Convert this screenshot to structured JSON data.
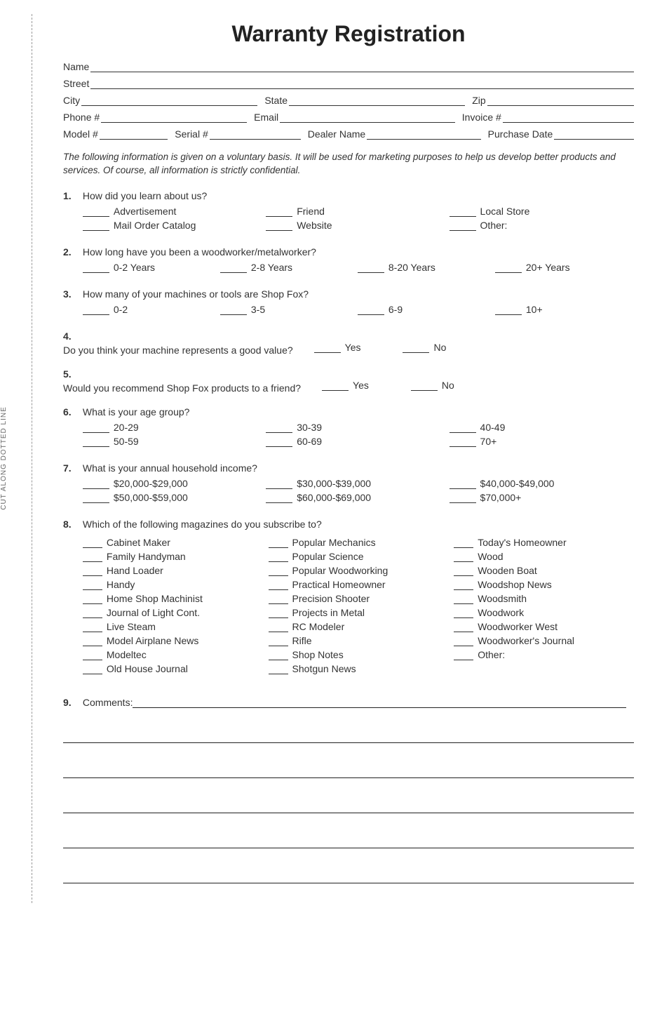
{
  "sidebar_label": "CUT ALONG DOTTED LINE",
  "title": "Warranty Registration",
  "header_fields": {
    "name": "Name",
    "street": "Street",
    "city": "City",
    "state": "State",
    "zip": "Zip",
    "phone": "Phone #",
    "email": "Email",
    "invoice": "Invoice #",
    "model": "Model #",
    "serial": "Serial #",
    "dealer": "Dealer Name",
    "purchase_date": "Purchase Date"
  },
  "intro": "The following information is given on a voluntary basis. It will be used for marketing purposes to help us develop better products and services. Of course, all information is strictly confidential.",
  "q1": {
    "text": "How did you learn about us?",
    "opts": [
      "Advertisement",
      "Friend",
      "Local Store",
      "Mail Order Catalog",
      "Website",
      "Other:"
    ]
  },
  "q2": {
    "text": "How long have you been a woodworker/metalworker?",
    "opts": [
      "0-2 Years",
      "2-8 Years",
      "8-20 Years",
      "20+ Years"
    ]
  },
  "q3": {
    "text": "How many of your machines or tools are Shop Fox?",
    "opts": [
      "0-2",
      "3-5",
      "6-9",
      "10+"
    ]
  },
  "q4": {
    "text": "Do you think your machine represents a good value?",
    "yes": "Yes",
    "no": "No"
  },
  "q5": {
    "text": "Would you recommend Shop Fox products to a friend?",
    "yes": "Yes",
    "no": "No"
  },
  "q6": {
    "text": "What is your age group?",
    "opts": [
      "20-29",
      "30-39",
      "40-49",
      "50-59",
      "60-69",
      "70+"
    ]
  },
  "q7": {
    "text": "What is your annual household income?",
    "opts": [
      "$20,000-$29,000",
      "$30,000-$39,000",
      "$40,000-$49,000",
      "$50,000-$59,000",
      "$60,000-$69,000",
      "$70,000+"
    ]
  },
  "q8": {
    "text": "Which of the following magazines do you subscribe to?",
    "col1": [
      "Cabinet Maker",
      "Family Handyman",
      "Hand Loader",
      "Handy",
      "Home Shop Machinist",
      "Journal of Light Cont.",
      "Live Steam",
      "Model Airplane News",
      "Modeltec",
      "Old House Journal"
    ],
    "col2": [
      "Popular Mechanics",
      "Popular Science",
      "Popular Woodworking",
      "Practical Homeowner",
      "Precision Shooter",
      "Projects in Metal",
      "RC Modeler",
      "Rifle",
      "Shop Notes",
      "Shotgun News"
    ],
    "col3": [
      "Today's Homeowner",
      "Wood",
      "Wooden Boat",
      "Woodshop News",
      "Woodsmith",
      "Woodwork",
      "Woodworker West",
      "Woodworker's Journal",
      "Other:"
    ]
  },
  "q9": {
    "text": "Comments:"
  },
  "colors": {
    "text": "#333333",
    "rule": "#222222",
    "dash": "#999999",
    "bg": "#ffffff"
  }
}
